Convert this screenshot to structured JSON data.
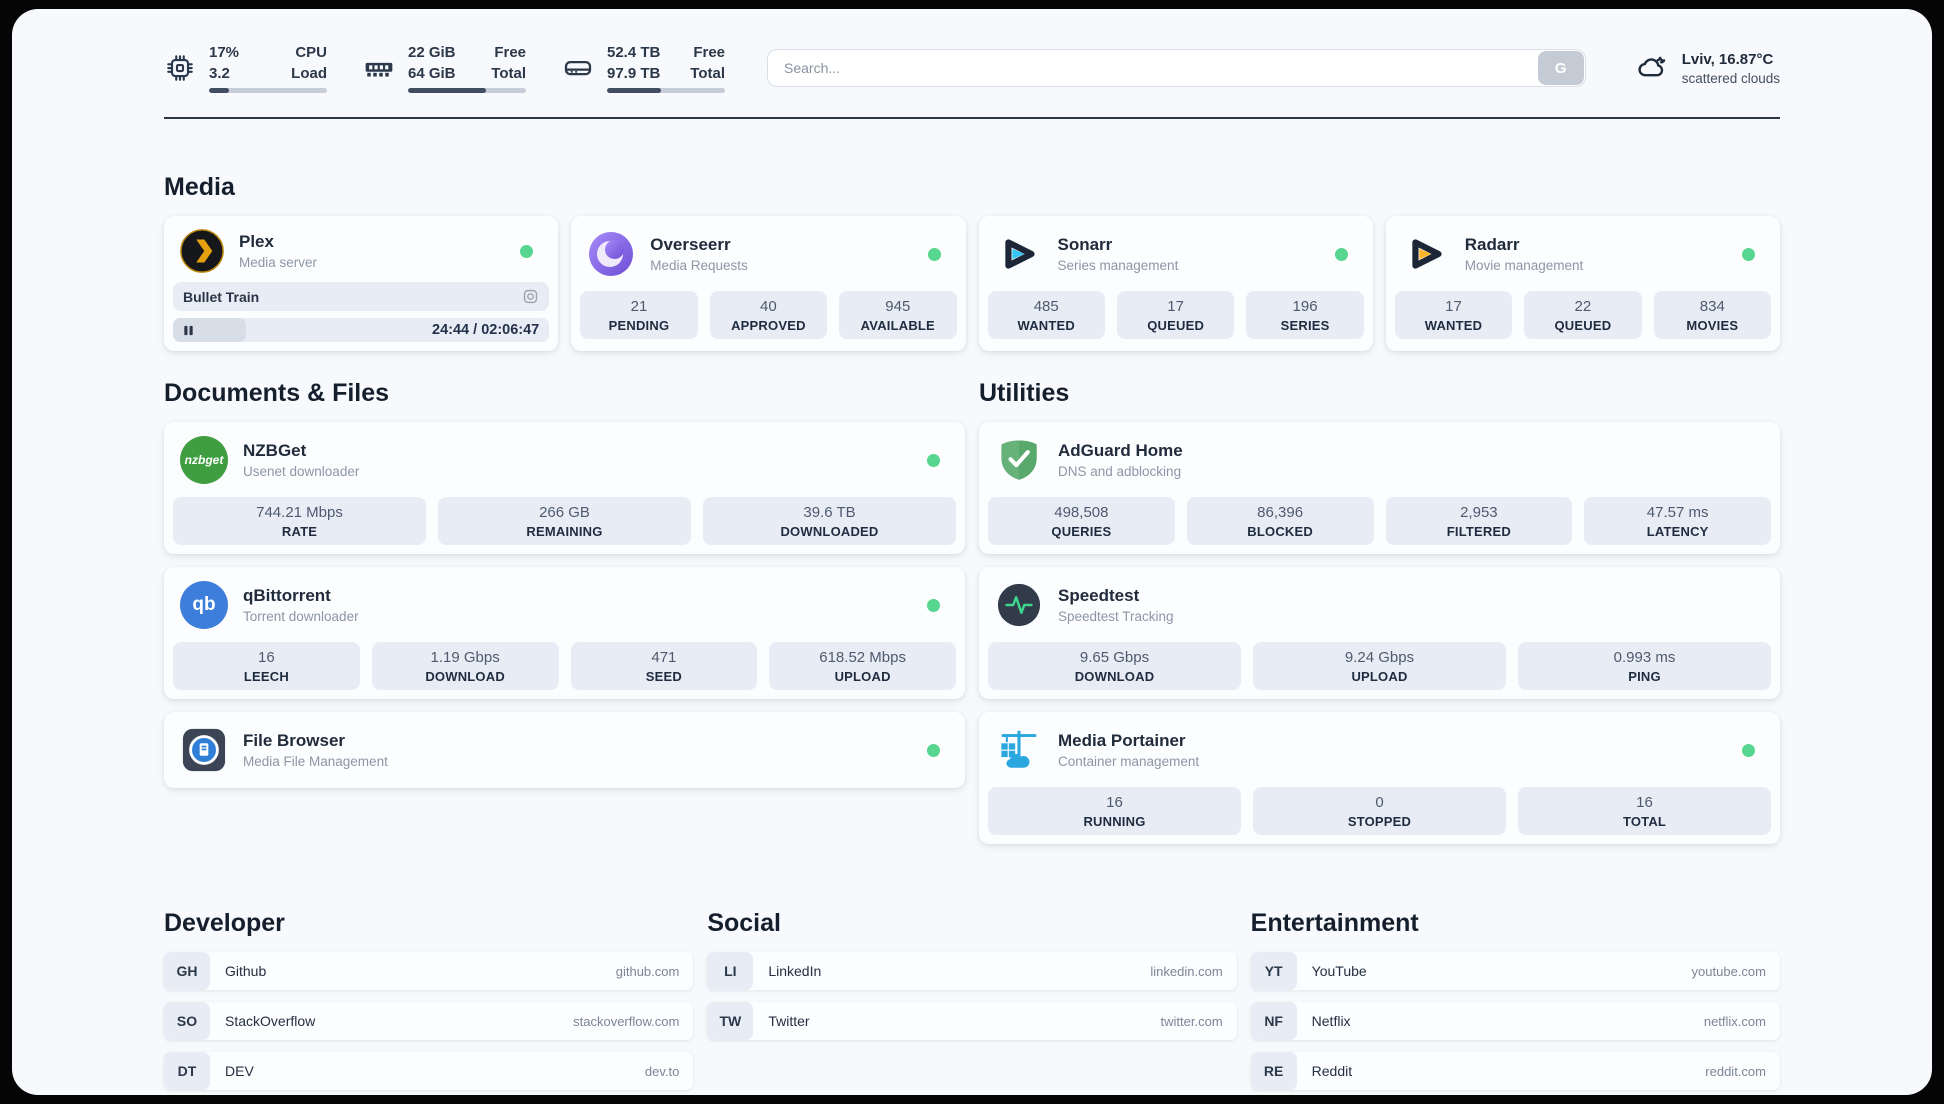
{
  "topbar": {
    "cpu": {
      "value_top": "17%",
      "value_bottom": "3.2",
      "label_top": "CPU",
      "label_bottom": "Load",
      "progress": 17
    },
    "ram": {
      "value_top": "22 GiB",
      "value_bottom": "64 GiB",
      "label_top": "Free",
      "label_bottom": "Total",
      "progress": 66
    },
    "disk": {
      "value_top": "52.4 TB",
      "value_bottom": "97.9 TB",
      "label_top": "Free",
      "label_bottom": "Total",
      "progress": 46
    },
    "search": {
      "placeholder": "Search...",
      "engine": "G"
    },
    "weather": {
      "location": "Lviv, 16.87°C",
      "condition": "scattered clouds"
    }
  },
  "sections": {
    "media": "Media",
    "documents": "Documents & Files",
    "utilities": "Utilities",
    "developer": "Developer",
    "social": "Social",
    "entertainment": "Entertainment"
  },
  "apps": {
    "plex": {
      "name": "Plex",
      "subtitle": "Media server",
      "now_playing": "Bullet Train",
      "time": "24:44 / 02:06:47",
      "progress": 19.5
    },
    "overseerr": {
      "name": "Overseerr",
      "subtitle": "Media Requests",
      "stats": [
        {
          "value": "21",
          "label": "PENDING"
        },
        {
          "value": "40",
          "label": "APPROVED"
        },
        {
          "value": "945",
          "label": "AVAILABLE"
        }
      ]
    },
    "sonarr": {
      "name": "Sonarr",
      "subtitle": "Series management",
      "stats": [
        {
          "value": "485",
          "label": "WANTED"
        },
        {
          "value": "17",
          "label": "QUEUED"
        },
        {
          "value": "196",
          "label": "SERIES"
        }
      ]
    },
    "radarr": {
      "name": "Radarr",
      "subtitle": "Movie management",
      "stats": [
        {
          "value": "17",
          "label": "WANTED"
        },
        {
          "value": "22",
          "label": "QUEUED"
        },
        {
          "value": "834",
          "label": "MOVIES"
        }
      ]
    },
    "nzbget": {
      "name": "NZBGet",
      "subtitle": "Usenet downloader",
      "icon_text": "nzbget",
      "stats": [
        {
          "value": "744.21 Mbps",
          "label": "RATE"
        },
        {
          "value": "266 GB",
          "label": "REMAINING"
        },
        {
          "value": "39.6 TB",
          "label": "DOWNLOADED"
        }
      ]
    },
    "qbittorrent": {
      "name": "qBittorrent",
      "subtitle": "Torrent downloader",
      "icon_text": "qb",
      "stats": [
        {
          "value": "16",
          "label": "LEECH"
        },
        {
          "value": "1.19 Gbps",
          "label": "DOWNLOAD"
        },
        {
          "value": "471",
          "label": "SEED"
        },
        {
          "value": "618.52 Mbps",
          "label": "UPLOAD"
        }
      ]
    },
    "filebrowser": {
      "name": "File Browser",
      "subtitle": "Media File Management"
    },
    "adguard": {
      "name": "AdGuard Home",
      "subtitle": "DNS and adblocking",
      "stats": [
        {
          "value": "498,508",
          "label": "QUERIES"
        },
        {
          "value": "86,396",
          "label": "BLOCKED"
        },
        {
          "value": "2,953",
          "label": "FILTERED"
        },
        {
          "value": "47.57 ms",
          "label": "LATENCY"
        }
      ]
    },
    "speedtest": {
      "name": "Speedtest",
      "subtitle": "Speedtest Tracking",
      "stats": [
        {
          "value": "9.65 Gbps",
          "label": "DOWNLOAD"
        },
        {
          "value": "9.24 Gbps",
          "label": "UPLOAD"
        },
        {
          "value": "0.993 ms",
          "label": "PING"
        }
      ]
    },
    "portainer": {
      "name": "Media Portainer",
      "subtitle": "Container management",
      "stats": [
        {
          "value": "16",
          "label": "RUNNING"
        },
        {
          "value": "0",
          "label": "STOPPED"
        },
        {
          "value": "16",
          "label": "TOTAL"
        }
      ]
    }
  },
  "bookmarks": {
    "developer": [
      {
        "tag": "GH",
        "name": "Github",
        "url": "github.com"
      },
      {
        "tag": "SO",
        "name": "StackOverflow",
        "url": "stackoverflow.com"
      },
      {
        "tag": "DT",
        "name": "DEV",
        "url": "dev.to"
      }
    ],
    "social": [
      {
        "tag": "LI",
        "name": "LinkedIn",
        "url": "linkedin.com"
      },
      {
        "tag": "TW",
        "name": "Twitter",
        "url": "twitter.com"
      }
    ],
    "entertainment": [
      {
        "tag": "YT",
        "name": "YouTube",
        "url": "youtube.com"
      },
      {
        "tag": "NF",
        "name": "Netflix",
        "url": "netflix.com"
      },
      {
        "tag": "RE",
        "name": "Reddit",
        "url": "reddit.com"
      }
    ]
  },
  "icons": {
    "cpu": "chip-icon",
    "ram": "memory-icon",
    "disk": "hard-drive-icon",
    "weather": "cloud-moon-icon",
    "search_engine": "google-G",
    "plex": "amber-chevron-circle",
    "overseerr": "purple-eye-circle",
    "sonarr": "cyan-play-triangle",
    "radarr": "amber-play-triangle",
    "adguard": "green-shield-check",
    "speedtest": "pulse-circle",
    "portainer": "blue-crane-containers",
    "filebrowser": "file-circle",
    "now_playing": "webcam-icon",
    "pause": "pause-icon"
  },
  "colors": {
    "status_online": "#57d690",
    "stat_box": "#e8edf5",
    "dark_text": "#202b3b",
    "page_bg": "#f7f9fc",
    "plex_amber": "#e5a00d",
    "sonarr_cyan": "#35c5f4",
    "radarr_amber": "#ffb528",
    "portainer_blue": "#2aa7df"
  }
}
